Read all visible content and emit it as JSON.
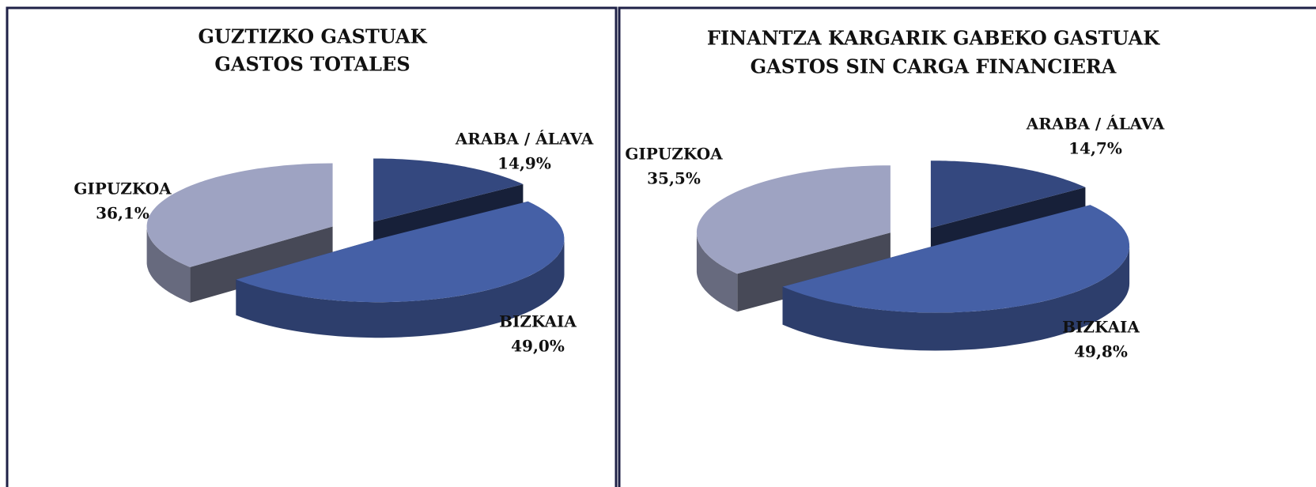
{
  "chart_data": [
    {
      "type": "pie3d",
      "title": "GUZTIZKO GASTUAK",
      "subtitle": "GASTOS TOTALES",
      "categories": [
        "ARABA / ÁLAVA",
        "BIZKAIA",
        "GIPUZKOA"
      ],
      "values": [
        14.9,
        49.0,
        36.1
      ],
      "value_labels": [
        "14,9%",
        "49,0%",
        "36,1%"
      ],
      "colors": [
        "#34487f",
        "#4560a6",
        "#9ea3c2"
      ]
    },
    {
      "type": "pie3d",
      "title": "FINANTZA KARGARIK GABEKO GASTUAK",
      "subtitle": "GASTOS SIN CARGA FINANCIERA",
      "categories": [
        "ARABA / ÁLAVA",
        "BIZKAIA",
        "GIPUZKOA"
      ],
      "values": [
        14.7,
        49.8,
        35.5
      ],
      "value_labels": [
        "14,7%",
        "49,8%",
        "35,5%"
      ],
      "colors": [
        "#34487f",
        "#4560a6",
        "#9ea3c2"
      ]
    }
  ]
}
